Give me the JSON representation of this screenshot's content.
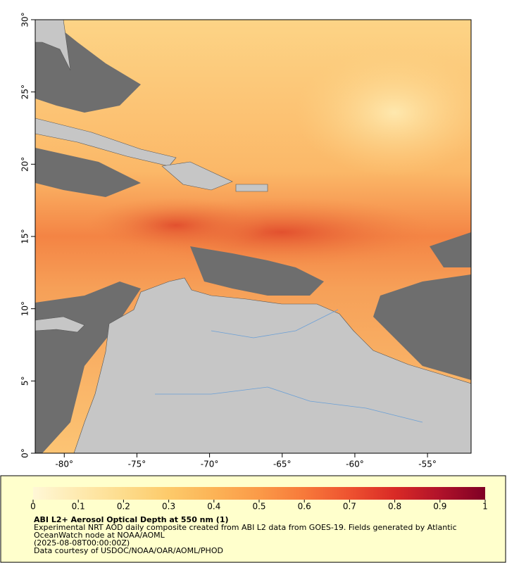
{
  "map": {
    "xlim": [
      -82,
      -52
    ],
    "ylim": [
      0,
      30
    ],
    "xticks": [
      {
        "value": -80,
        "label": "-80°"
      },
      {
        "value": -75,
        "label": "-75°"
      },
      {
        "value": -70,
        "label": "-70°"
      },
      {
        "value": -65,
        "label": "-65°"
      },
      {
        "value": -60,
        "label": "-60°"
      },
      {
        "value": -55,
        "label": "-55°"
      }
    ],
    "yticks": [
      {
        "value": 0,
        "label": "0°"
      },
      {
        "value": 5,
        "label": "5°"
      },
      {
        "value": 10,
        "label": "10°"
      },
      {
        "value": 15,
        "label": "15°"
      },
      {
        "value": 20,
        "label": "20°"
      },
      {
        "value": 25,
        "label": "25°"
      },
      {
        "value": 30,
        "label": "30°"
      }
    ]
  },
  "colorbar": {
    "range": [
      0,
      1
    ],
    "ticks": [
      0,
      0.1,
      0.2,
      0.3,
      0.4,
      0.5,
      0.6,
      0.7,
      0.8,
      0.9,
      1
    ],
    "colors": [
      "#fff7d6",
      "#feeab0",
      "#fddc8c",
      "#fdca6a",
      "#fcb356",
      "#fb9a48",
      "#f7793a",
      "#ee5230",
      "#d92a26",
      "#b0122a",
      "#7f0025"
    ]
  },
  "caption": {
    "title": "ABI L2+ Aerosol Optical Depth at 550 nm (1)",
    "line1": "Experimental NRT AOD daily composite created from ABI L2 data from GOES-19. Fields generated by Atlantic",
    "line2": "OceanWatch node at NOAA/AOML",
    "line3": "(2025-08-08T00:00:00Z)",
    "line4": "Data courtesy of USDOC/NOAA/OAR/AOML/PHOD"
  }
}
